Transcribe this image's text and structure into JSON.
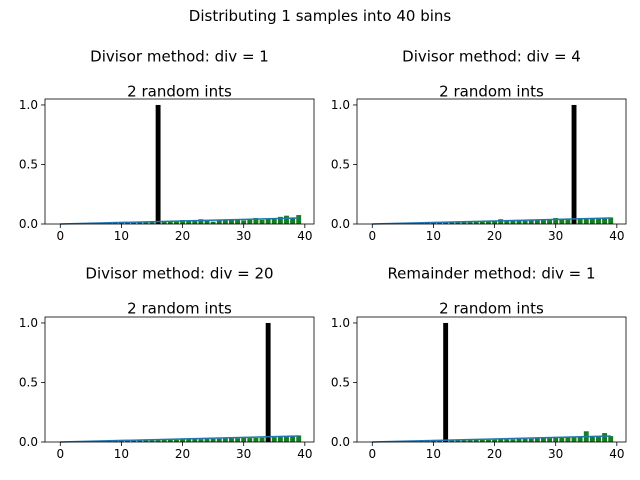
{
  "suptitle": "Distributing 1 samples into 40 bins",
  "chart_data": [
    {
      "type": "bar",
      "title": "Divisor method: div = 1",
      "subtitle": "2 random ints",
      "xlim": [
        -2.5,
        41.5
      ],
      "ylim": [
        0,
        1.05
      ],
      "xticks": [
        0,
        10,
        20,
        30,
        40
      ],
      "yticks": [
        0.0,
        0.5,
        1.0
      ],
      "ytick_labels": [
        "0.0",
        "0.5",
        "1.0"
      ],
      "main_bar": {
        "x": 16,
        "value": 1.0,
        "color": "#000000"
      },
      "green_bars": {
        "color": "#157f1f",
        "x": [
          0,
          1,
          2,
          3,
          4,
          5,
          6,
          7,
          8,
          9,
          10,
          11,
          12,
          13,
          14,
          15,
          16,
          17,
          18,
          19,
          20,
          21,
          22,
          23,
          24,
          25,
          26,
          27,
          28,
          29,
          30,
          31,
          32,
          33,
          34,
          35,
          36,
          37,
          38,
          39
        ],
        "values": [
          0,
          0,
          0.002,
          0.003,
          0.004,
          0.004,
          0.006,
          0.007,
          0.008,
          0.008,
          0.01,
          0.011,
          0.012,
          0.014,
          0.015,
          0.016,
          0.017,
          0.018,
          0.02,
          0.021,
          0.033,
          0.024,
          0.027,
          0.04,
          0.03,
          0.02,
          0.035,
          0.037,
          0.038,
          0.04,
          0.03,
          0.043,
          0.05,
          0.035,
          0.045,
          0.05,
          0.06,
          0.07,
          0.055,
          0.075
        ]
      },
      "line": {
        "color": "#1f77b4",
        "x": [
          0,
          39
        ],
        "y": [
          0.0,
          0.05
        ]
      }
    },
    {
      "type": "bar",
      "title": "Divisor method: div = 4",
      "subtitle": "2 random ints",
      "xlim": [
        -2.5,
        41.5
      ],
      "ylim": [
        0,
        1.05
      ],
      "xticks": [
        0,
        10,
        20,
        30,
        40
      ],
      "yticks": [
        0.0,
        0.5,
        1.0
      ],
      "ytick_labels": [
        "0.0",
        "0.5",
        "1.0"
      ],
      "main_bar": {
        "x": 33,
        "value": 1.0,
        "color": "#000000"
      },
      "green_bars": {
        "color": "#157f1f",
        "x": [
          0,
          1,
          2,
          3,
          4,
          5,
          6,
          7,
          8,
          9,
          10,
          11,
          12,
          13,
          14,
          15,
          16,
          17,
          18,
          19,
          20,
          21,
          22,
          23,
          24,
          25,
          26,
          27,
          28,
          29,
          30,
          31,
          32,
          33,
          34,
          35,
          36,
          37,
          38,
          39
        ],
        "values": [
          0,
          0,
          0.001,
          0.002,
          0.003,
          0.004,
          0.006,
          0.007,
          0.008,
          0.012,
          0.012,
          0.013,
          0.014,
          0.02,
          0.015,
          0.017,
          0.02,
          0.02,
          0.021,
          0.022,
          0.023,
          0.04,
          0.025,
          0.026,
          0.03,
          0.028,
          0.03,
          0.032,
          0.033,
          0.034,
          0.05,
          0.036,
          0.037,
          0.04,
          0.045,
          0.042,
          0.05,
          0.048,
          0.05,
          0.055
        ]
      },
      "line": {
        "color": "#1f77b4",
        "x": [
          0,
          39
        ],
        "y": [
          0.0,
          0.05
        ]
      }
    },
    {
      "type": "bar",
      "title": "Divisor method: div = 20",
      "subtitle": "2 random ints",
      "xlim": [
        -2.5,
        41.5
      ],
      "ylim": [
        0,
        1.05
      ],
      "xticks": [
        0,
        10,
        20,
        30,
        40
      ],
      "yticks": [
        0.0,
        0.5,
        1.0
      ],
      "ytick_labels": [
        "0.0",
        "0.5",
        "1.0"
      ],
      "main_bar": {
        "x": 34,
        "value": 1.0,
        "color": "#000000"
      },
      "green_bars": {
        "color": "#157f1f",
        "x": [
          0,
          1,
          2,
          3,
          4,
          5,
          6,
          7,
          8,
          9,
          10,
          11,
          12,
          13,
          14,
          15,
          16,
          17,
          18,
          19,
          20,
          21,
          22,
          23,
          24,
          25,
          26,
          27,
          28,
          29,
          30,
          31,
          32,
          33,
          34,
          35,
          36,
          37,
          38,
          39
        ],
        "values": [
          0,
          0,
          0.001,
          0.002,
          0.003,
          0.004,
          0.005,
          0.006,
          0.008,
          0.009,
          0.01,
          0.011,
          0.012,
          0.013,
          0.014,
          0.015,
          0.016,
          0.017,
          0.018,
          0.02,
          0.03,
          0.022,
          0.028,
          0.024,
          0.025,
          0.027,
          0.028,
          0.029,
          0.03,
          0.032,
          0.035,
          0.033,
          0.035,
          0.036,
          0.038,
          0.04,
          0.045,
          0.042,
          0.05,
          0.055
        ]
      },
      "line": {
        "color": "#1f77b4",
        "x": [
          0,
          39
        ],
        "y": [
          0.0,
          0.05
        ]
      }
    },
    {
      "type": "bar",
      "title": "Remainder method: div = 1",
      "subtitle": "2 random ints",
      "xlim": [
        -2.5,
        41.5
      ],
      "ylim": [
        0,
        1.05
      ],
      "xticks": [
        0,
        10,
        20,
        30,
        40
      ],
      "yticks": [
        0.0,
        0.5,
        1.0
      ],
      "ytick_labels": [
        "0.0",
        "0.5",
        "1.0"
      ],
      "main_bar": {
        "x": 12,
        "value": 1.0,
        "color": "#000000"
      },
      "green_bars": {
        "color": "#157f1f",
        "x": [
          0,
          1,
          2,
          3,
          4,
          5,
          6,
          7,
          8,
          9,
          10,
          11,
          12,
          13,
          14,
          15,
          16,
          17,
          18,
          19,
          20,
          21,
          22,
          23,
          24,
          25,
          26,
          27,
          28,
          29,
          30,
          31,
          32,
          33,
          34,
          35,
          36,
          37,
          38,
          39
        ],
        "values": [
          0,
          0,
          0.001,
          0.002,
          0.003,
          0.004,
          0.005,
          0.006,
          0.007,
          0.008,
          0.009,
          0.01,
          0.012,
          0.013,
          0.014,
          0.015,
          0.016,
          0.017,
          0.018,
          0.019,
          0.02,
          0.021,
          0.022,
          0.023,
          0.03,
          0.027,
          0.028,
          0.03,
          0.031,
          0.033,
          0.035,
          0.036,
          0.038,
          0.04,
          0.042,
          0.09,
          0.05,
          0.05,
          0.075,
          0.05
        ]
      },
      "line": {
        "color": "#1f77b4",
        "x": [
          0,
          39
        ],
        "y": [
          0.0,
          0.05
        ]
      }
    }
  ]
}
